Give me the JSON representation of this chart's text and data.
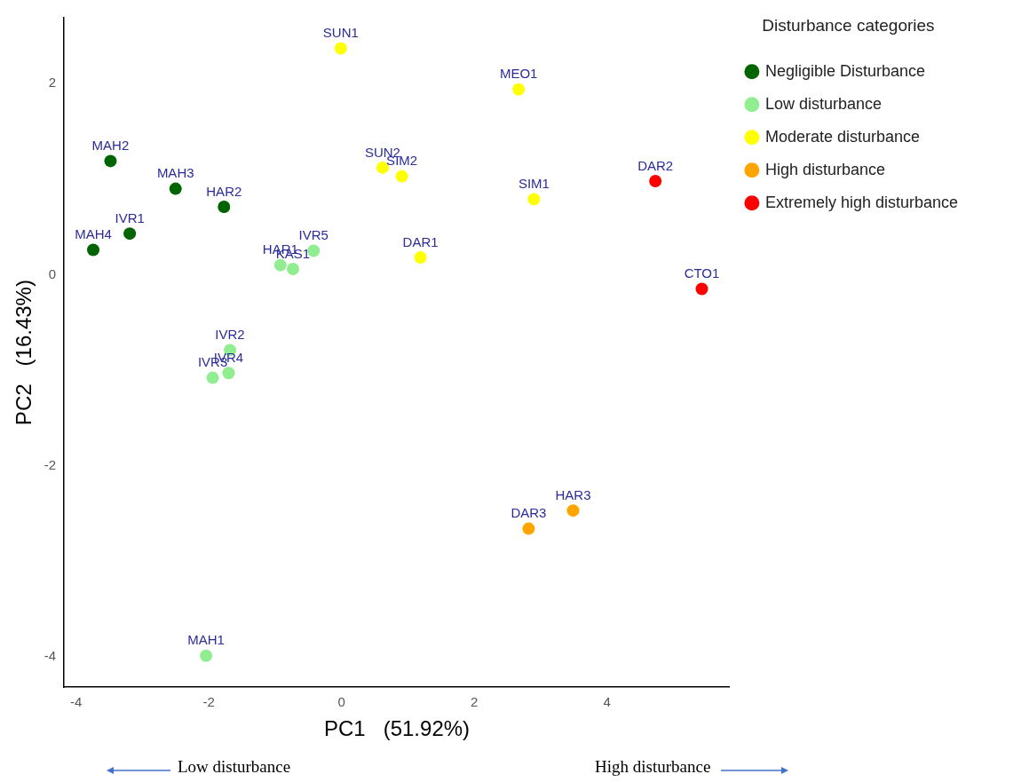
{
  "chart_data": {
    "type": "scatter",
    "xlabel": "PC1   (51.92%)",
    "ylabel": "PC2   (16.43%)",
    "legend_title": "Disturbance categories",
    "legend": "top right",
    "grid": false,
    "marker": "circle",
    "xlim": [
      -4.18,
      5.85
    ],
    "ylim": [
      -4.32,
      2.69
    ],
    "xticks": [
      -4,
      -2,
      0,
      2,
      4
    ],
    "yticks": [
      -4,
      -2,
      0,
      2
    ],
    "series": [
      {
        "name": "Negligible Disturbance",
        "color": "#006400",
        "x": [
          -3.48,
          -2.5,
          -1.77,
          -3.19,
          -3.74
        ],
        "values": [
          1.19,
          0.9,
          0.71,
          0.43,
          0.26
        ],
        "value_labels": [
          "MAH2",
          "MAH3",
          "HAR2",
          "IVR1",
          "MAH4"
        ]
      },
      {
        "name": "Low disturbance",
        "color": "#90ee90",
        "x": [
          -0.42,
          -0.92,
          -0.73,
          -1.68,
          -1.7,
          -1.94,
          -2.04
        ],
        "values": [
          0.25,
          0.1,
          0.06,
          -0.79,
          -1.03,
          -1.08,
          -3.99
        ],
        "value_labels": [
          "IVR5",
          "HAR1",
          "KAS1",
          "IVR2",
          "IVR4",
          "IVR3",
          "MAH1"
        ]
      },
      {
        "name": "Moderate disturbance",
        "color": "#ffff00",
        "x": [
          -0.01,
          2.67,
          0.62,
          0.91,
          2.9,
          1.19
        ],
        "values": [
          2.37,
          1.94,
          1.12,
          1.03,
          0.79,
          0.18
        ],
        "value_labels": [
          "SUN1",
          "MEO1",
          "SUN2",
          "SIM2",
          "SIM1",
          "DAR1"
        ]
      },
      {
        "name": "High disturbance",
        "color": "#ffa500",
        "x": [
          3.49,
          2.82
        ],
        "values": [
          -2.47,
          -2.66
        ],
        "value_labels": [
          "HAR3",
          "DAR3"
        ]
      },
      {
        "name": "Extremely high disturbance",
        "color": "#ff0000",
        "x": [
          4.73,
          5.43
        ],
        "values": [
          0.98,
          -0.15
        ],
        "value_labels": [
          "DAR2",
          "CTO1"
        ]
      }
    ],
    "annotations": [
      "Low disturbance",
      "High disturbance"
    ]
  }
}
